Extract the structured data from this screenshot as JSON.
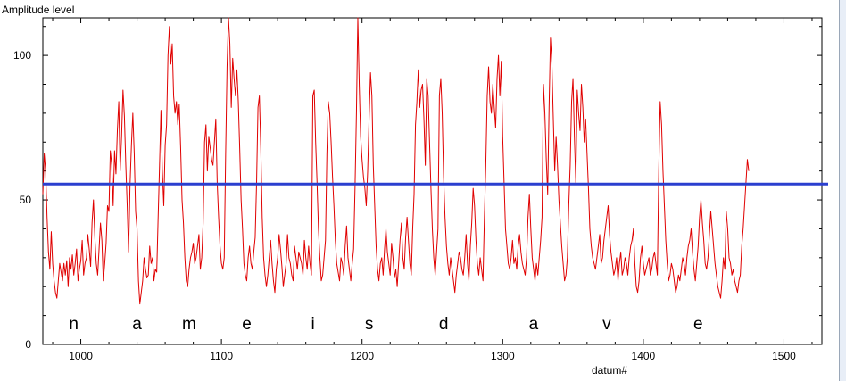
{
  "chart_data": {
    "type": "line",
    "title": "",
    "ylabel": "Amplitude level",
    "xlabel": "datum#",
    "xlim": [
      973,
      1527
    ],
    "ylim": [
      0,
      113
    ],
    "x_ticks": [
      1000,
      1100,
      1200,
      1300,
      1400,
      1500
    ],
    "y_ticks": [
      0,
      50,
      100
    ],
    "grid": false,
    "colors": {
      "signal": "#e00000",
      "threshold": "#2a3fcf"
    },
    "threshold": {
      "y": 55.5
    },
    "letters": [
      {
        "text": "n",
        "x": 995
      },
      {
        "text": "a",
        "x": 1040
      },
      {
        "text": "m",
        "x": 1077
      },
      {
        "text": "e",
        "x": 1118
      },
      {
        "text": "i",
        "x": 1165
      },
      {
        "text": "s",
        "x": 1205
      },
      {
        "text": "d",
        "x": 1258
      },
      {
        "text": "a",
        "x": 1322
      },
      {
        "text": "v",
        "x": 1374
      },
      {
        "text": "e",
        "x": 1439
      }
    ],
    "series": [
      {
        "x_start": 973,
        "x_step": 1,
        "values": [
          52,
          66,
          60,
          44,
          32,
          26,
          39,
          28,
          22,
          18,
          16,
          22,
          28,
          25,
          22,
          28,
          24,
          29,
          20,
          30,
          26,
          31,
          24,
          28,
          33,
          22,
          26,
          29,
          36,
          24,
          28,
          30,
          38,
          33,
          27,
          42,
          50,
          37,
          28,
          24,
          33,
          42,
          36,
          22,
          28,
          35,
          48,
          46,
          67,
          62,
          48,
          67,
          59,
          74,
          84,
          60,
          72,
          88,
          79,
          62,
          48,
          32,
          55,
          69,
          80,
          66,
          46,
          40,
          22,
          14,
          18,
          22,
          30,
          26,
          23,
          24,
          34,
          28,
          30,
          22,
          26,
          25,
          44,
          62,
          81,
          60,
          48,
          69,
          76,
          100,
          110,
          97,
          104,
          86,
          80,
          84,
          76,
          83,
          68,
          50,
          42,
          30,
          22,
          20,
          26,
          30,
          32,
          35,
          28,
          30,
          34,
          38,
          26,
          30,
          42,
          70,
          76,
          60,
          72,
          68,
          64,
          62,
          70,
          78,
          56,
          44,
          34,
          28,
          26,
          30,
          66,
          96,
          113,
          104,
          82,
          99,
          92,
          86,
          95,
          84,
          68,
          50,
          40,
          28,
          24,
          22,
          30,
          34,
          28,
          26,
          32,
          37,
          56,
          82,
          86,
          68,
          44,
          30,
          24,
          20,
          24,
          30,
          36,
          28,
          22,
          18,
          26,
          30,
          38,
          33,
          27,
          20,
          24,
          28,
          38,
          30,
          28,
          24,
          22,
          34,
          30,
          26,
          32,
          30,
          28,
          24,
          36,
          30,
          26,
          34,
          28,
          24,
          86,
          88,
          70,
          56,
          40,
          30,
          22,
          24,
          30,
          36,
          66,
          84,
          80,
          70,
          58,
          48,
          36,
          28,
          25,
          22,
          30,
          28,
          24,
          34,
          41,
          30,
          26,
          22,
          28,
          33,
          54,
          80,
          113,
          90,
          72,
          64,
          58,
          54,
          48,
          60,
          78,
          94,
          86,
          62,
          48,
          34,
          26,
          22,
          28,
          30,
          24,
          33,
          40,
          32,
          28,
          24,
          35,
          30,
          23,
          26,
          20,
          28,
          36,
          42,
          30,
          26,
          37,
          44,
          36,
          28,
          24,
          40,
          52,
          76,
          84,
          95,
          82,
          88,
          90,
          78,
          62,
          92,
          86,
          70,
          54,
          40,
          30,
          24,
          32,
          40,
          86,
          92,
          80,
          58,
          44,
          34,
          28,
          24,
          30,
          26,
          22,
          18,
          24,
          28,
          32,
          30,
          26,
          24,
          30,
          38,
          28,
          22,
          34,
          42,
          54,
          48,
          36,
          28,
          24,
          30,
          26,
          22,
          44,
          62,
          86,
          96,
          84,
          80,
          90,
          82,
          75,
          92,
          100,
          86,
          98,
          72,
          56,
          40,
          34,
          28,
          26,
          30,
          36,
          28,
          30,
          26,
          34,
          38,
          32,
          28,
          26,
          24,
          30,
          44,
          52,
          40,
          30,
          26,
          22,
          28,
          24,
          30,
          36,
          44,
          90,
          80,
          64,
          52,
          82,
          106,
          97,
          78,
          60,
          72,
          62,
          50,
          42,
          34,
          28,
          22,
          24,
          30,
          48,
          62,
          84,
          92,
          72,
          56,
          88,
          80,
          74,
          90,
          82,
          70,
          78,
          66,
          54,
          40,
          34,
          30,
          28,
          26,
          30,
          34,
          38,
          28,
          30,
          36,
          40,
          44,
          48,
          38,
          32,
          28,
          24,
          26,
          30,
          22,
          28,
          32,
          24,
          26,
          30,
          28,
          24,
          30,
          34,
          36,
          40,
          28,
          20,
          18,
          22,
          30,
          34,
          28,
          24,
          26,
          28,
          30,
          24,
          26,
          30,
          32,
          28,
          24,
          60,
          84,
          76,
          60,
          48,
          36,
          28,
          22,
          24,
          28,
          26,
          22,
          18,
          20,
          24,
          22,
          26,
          30,
          28,
          24,
          30,
          34,
          36,
          40,
          32,
          26,
          22,
          28,
          34,
          44,
          50,
          42,
          36,
          28,
          26,
          30,
          38,
          46,
          40,
          34,
          28,
          24,
          20,
          18,
          16,
          22,
          30,
          26,
          46,
          40,
          30,
          28,
          24,
          26,
          22,
          20,
          18,
          22,
          24,
          34,
          40,
          48,
          56,
          64,
          60
        ]
      }
    ]
  }
}
